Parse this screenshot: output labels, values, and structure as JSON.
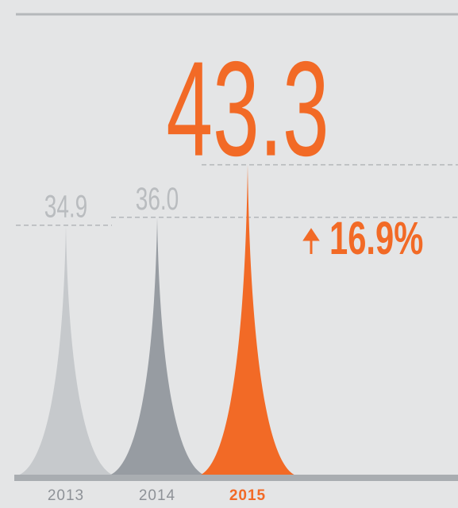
{
  "chart_data": {
    "type": "spike",
    "categories": [
      "2013",
      "2014",
      "2015"
    ],
    "values": [
      34.9,
      36,
      43.3
    ],
    "value_labels": [
      "34.9",
      "36.0",
      "43.3"
    ],
    "colors": [
      "#c6c9cc",
      "#979ca2",
      "#f26a26"
    ],
    "label_colors": [
      "#b9bcbf",
      "#b9bcbf",
      "#f26a26"
    ],
    "year_colors": [
      "#8e9297",
      "#8e9297",
      "#f26a26"
    ],
    "ylim": [
      0,
      48
    ],
    "annotation": "16.9%"
  }
}
